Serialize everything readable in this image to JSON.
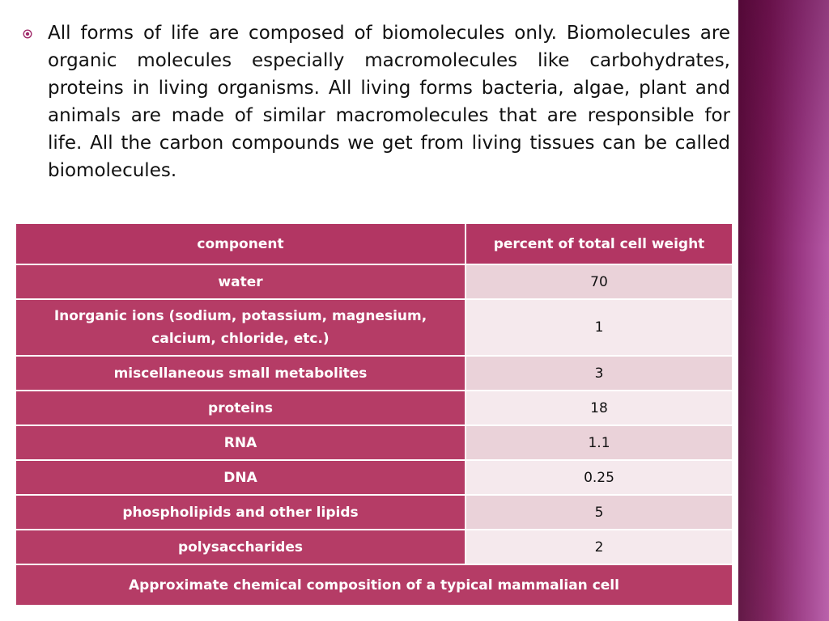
{
  "slide": {
    "background_color": "#ffffff",
    "side_band_colors": [
      "#5a0d3c",
      "#b65aa7"
    ]
  },
  "bullet": {
    "icon": "circle-dot-icon",
    "text": "All forms of life are composed of biomolecules only. Biomolecules are organic molecules especially macromolecules like carbohydrates, proteins in living organisms. All living forms bacteria, algae, plant and animals are made of similar macromolecules that are responsible for life. All the carbon compounds we get from living tissues can be called biomolecules."
  },
  "table": {
    "headers": {
      "component": "component",
      "percent": "percent of total cell weight"
    },
    "rows": [
      {
        "component": "water",
        "percent": "70"
      },
      {
        "component": "Inorganic ions (sodium, potassium, magnesium, calcium, chloride, etc.)",
        "percent": "1"
      },
      {
        "component": "miscellaneous small metabolites",
        "percent": "3"
      },
      {
        "component": "proteins",
        "percent": "18"
      },
      {
        "component": "RNA",
        "percent": "1.1"
      },
      {
        "component": "DNA",
        "percent": "0.25"
      },
      {
        "component": "phospholipids and other lipids",
        "percent": "5"
      },
      {
        "component": "polysaccharides",
        "percent": "2"
      }
    ],
    "caption": "Approximate chemical composition of a typical mammalian cell",
    "colors": {
      "accent": "#b53c66",
      "row_light": "#f5e9ed",
      "row_mid": "#ead2d9"
    }
  }
}
